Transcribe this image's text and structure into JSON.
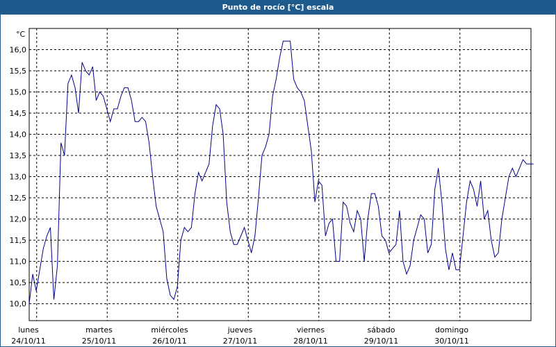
{
  "title": "Punto de rocío [°C] escala",
  "chart_data": {
    "type": "line",
    "title": "Punto de rocío [°C] escala",
    "unit_label": "°C",
    "ylim": [
      9.6,
      16.5
    ],
    "y_ticks": [
      "10,0",
      "10,5",
      "11,0",
      "11,5",
      "12,0",
      "12,5",
      "13,0",
      "13,5",
      "14,0",
      "14,5",
      "15,0",
      "15,5",
      "16,0"
    ],
    "x_tick_days": [
      "lunes",
      "martes",
      "miércoles",
      "jueves",
      "viernes",
      "sábado",
      "domingo"
    ],
    "x_tick_dates": [
      "24/10/11",
      "25/10/11",
      "26/10/11",
      "27/10/11",
      "28/10/11",
      "29/10/11",
      "30/10/11"
    ],
    "grid": true,
    "series": [
      {
        "color": "#00008b",
        "x": [
          0.0,
          0.05,
          0.1,
          0.15,
          0.2,
          0.25,
          0.3,
          0.35,
          0.4,
          0.45,
          0.5,
          0.55,
          0.6,
          0.65,
          0.7,
          0.75,
          0.8,
          0.85,
          0.9,
          0.95,
          1.0,
          1.05,
          1.1,
          1.15,
          1.2,
          1.25,
          1.3,
          1.35,
          1.4,
          1.45,
          1.5,
          1.55,
          1.6,
          1.65,
          1.7,
          1.75,
          1.8,
          1.85,
          1.9,
          1.95,
          2.0,
          2.05,
          2.1,
          2.15,
          2.2,
          2.25,
          2.3,
          2.35,
          2.4,
          2.45,
          2.5,
          2.55,
          2.6,
          2.65,
          2.7,
          2.75,
          2.8,
          2.85,
          2.9,
          2.95,
          3.0,
          3.05,
          3.1,
          3.15,
          3.2,
          3.25,
          3.3,
          3.35,
          3.4,
          3.45,
          3.5,
          3.55,
          3.6,
          3.65,
          3.7,
          3.75,
          3.8,
          3.85,
          3.9,
          3.95,
          4.0,
          4.05,
          4.1,
          4.15,
          4.2,
          4.25,
          4.3,
          4.35,
          4.4,
          4.45,
          4.5,
          4.55,
          4.6,
          4.65,
          4.7,
          4.75,
          4.8,
          4.85,
          4.9,
          4.95,
          5.0,
          5.05,
          5.1,
          5.15,
          5.2,
          5.25,
          5.3,
          5.35,
          5.4,
          5.45,
          5.5,
          5.55,
          5.6,
          5.65,
          5.7,
          5.75,
          5.8,
          5.85,
          5.9,
          5.95,
          6.0,
          6.05,
          6.1,
          6.15,
          6.2,
          6.25,
          6.3,
          6.35,
          6.4,
          6.45,
          6.5,
          6.55,
          6.6,
          6.65,
          6.7,
          6.75,
          6.8,
          6.85,
          6.9,
          6.95,
          7.0,
          7.05,
          7.1,
          7.15
        ],
        "y": [
          10.0,
          10.7,
          10.3,
          10.8,
          11.3,
          11.6,
          11.8,
          10.1,
          10.9,
          13.8,
          13.5,
          15.2,
          15.4,
          15.1,
          14.5,
          15.7,
          15.5,
          15.4,
          15.6,
          14.8,
          15.0,
          14.9,
          14.6,
          14.3,
          14.6,
          14.6,
          14.9,
          15.1,
          15.1,
          14.8,
          14.3,
          14.3,
          14.4,
          14.3,
          13.8,
          13.0,
          12.3,
          12.0,
          11.7,
          10.6,
          10.2,
          10.1,
          10.4,
          11.5,
          11.8,
          11.7,
          11.8,
          12.6,
          13.1,
          12.9,
          13.1,
          13.3,
          14.2,
          14.7,
          14.6,
          14.0,
          12.4,
          11.7,
          11.4,
          11.4,
          11.6,
          11.8,
          11.5,
          11.2,
          11.6,
          12.5,
          13.5,
          13.7,
          14.0,
          14.9,
          15.3,
          15.8,
          16.2,
          16.2,
          16.2,
          15.3,
          15.1,
          15.0,
          14.8,
          14.2,
          13.6,
          12.4,
          12.9,
          12.8,
          11.6,
          11.9,
          12.0,
          11.0,
          11.0,
          12.4,
          12.3,
          11.9,
          11.7,
          12.2,
          12.0,
          11.0,
          12.0,
          12.6,
          12.6,
          12.3,
          11.6,
          11.5,
          11.2,
          11.3,
          11.4,
          12.2,
          11.0,
          10.7,
          10.9,
          11.5,
          11.8,
          12.1,
          12.0,
          11.2,
          11.4,
          12.7,
          13.2,
          12.4,
          11.3,
          10.8,
          11.2,
          10.8,
          10.8,
          11.6,
          12.4,
          12.9,
          12.7,
          12.3,
          12.9,
          12.0,
          12.2,
          11.5,
          11.1,
          11.2,
          12.0,
          12.5,
          13.0,
          13.2,
          13.0,
          13.2,
          13.4,
          13.3,
          13.3,
          13.3
        ]
      }
    ]
  }
}
